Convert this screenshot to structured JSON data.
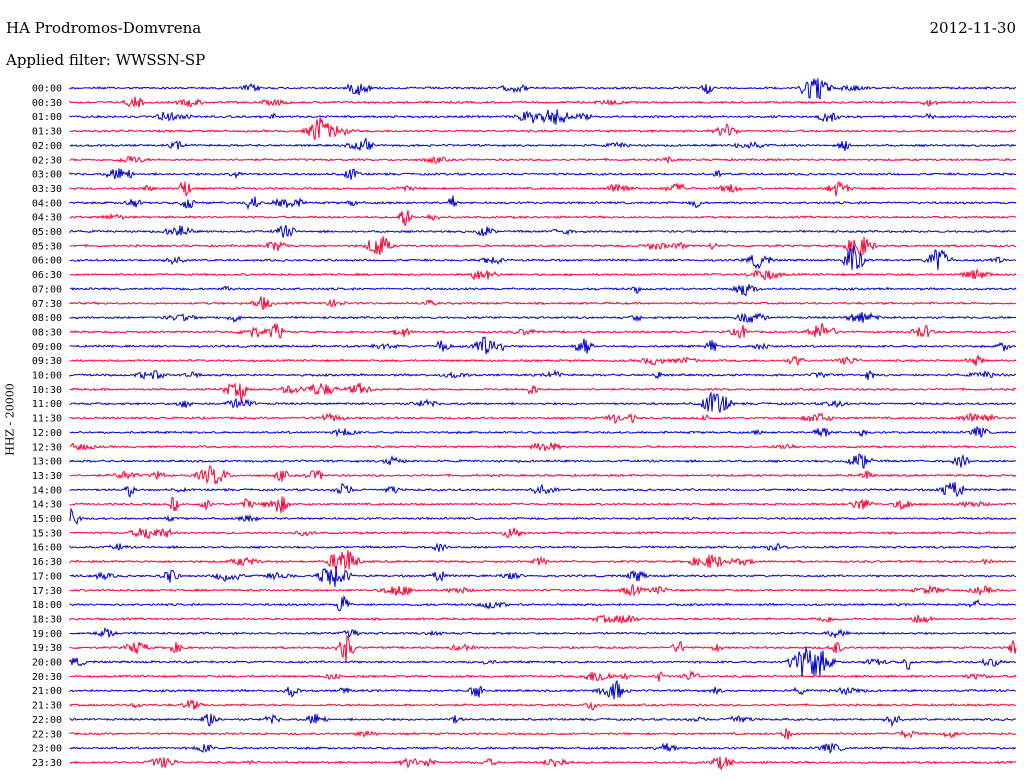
{
  "header": {
    "station": "HA Prodromos-Domvrena",
    "date": "2012-11-30",
    "filter": "Applied filter: WWSSN-SP",
    "channel": "HHZ - 20000"
  },
  "chart_data": {
    "type": "line",
    "title": "HA Prodromos-Domvrena",
    "ylabel": "HHZ - 20000",
    "grid": false,
    "colors": [
      "#0000cc",
      "#ff0033"
    ],
    "categories": [
      "00:00",
      "00:30",
      "01:00",
      "01:30",
      "02:00",
      "02:30",
      "03:00",
      "03:30",
      "04:00",
      "04:30",
      "05:00",
      "05:30",
      "06:00",
      "06:30",
      "07:00",
      "07:30",
      "08:00",
      "08:30",
      "09:00",
      "09:30",
      "10:00",
      "10:30",
      "11:00",
      "11:30",
      "12:00",
      "12:30",
      "13:00",
      "13:30",
      "14:00",
      "14:30",
      "15:00",
      "15:30",
      "16:00",
      "16:30",
      "17:00",
      "17:30",
      "18:00",
      "18:30",
      "19:00",
      "19:30",
      "20:00",
      "20:30",
      "21:00",
      "21:30",
      "22:00",
      "22:30",
      "23:00",
      "23:30"
    ],
    "trace_minutes": 30
  }
}
